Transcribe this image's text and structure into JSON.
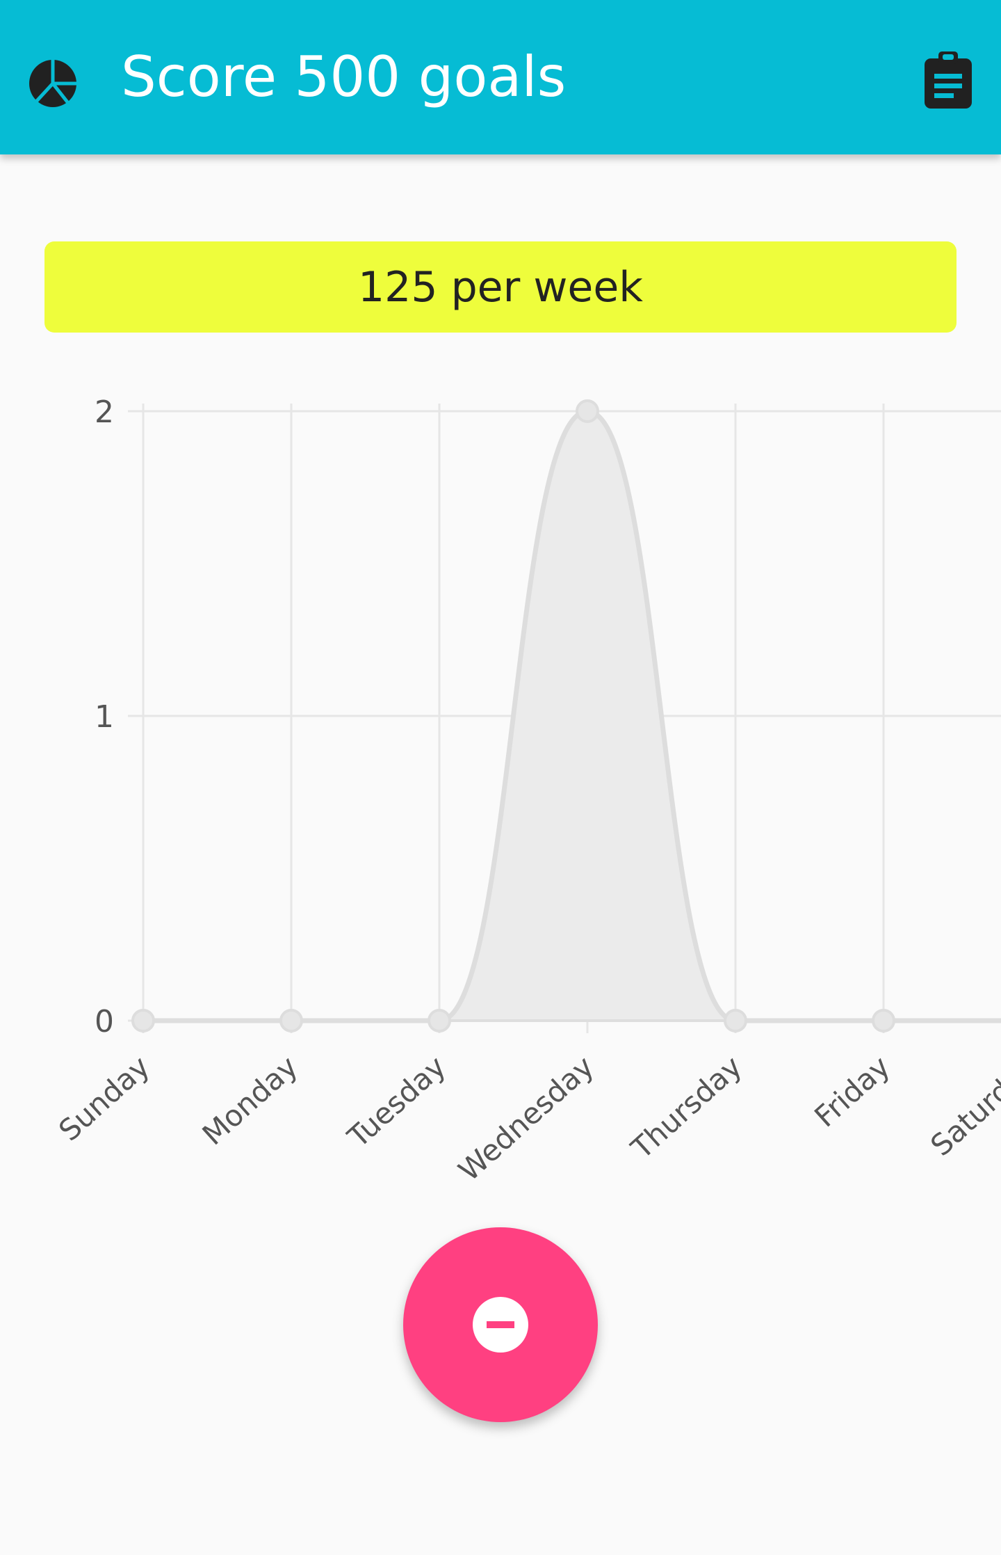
{
  "appbar": {
    "title": "Score 500 goals",
    "icon": "pie-chart-icon",
    "action_icon": "clipboard-icon",
    "color": "#06bcd4"
  },
  "rate_banner": {
    "text": "125 per week",
    "color": "#eefd3c"
  },
  "fab": {
    "icon": "minus-circle-icon",
    "color": "#ff4081"
  },
  "chart_data": {
    "type": "area",
    "categories": [
      "Sunday",
      "Monday",
      "Tuesday",
      "Wednesday",
      "Thursday",
      "Friday",
      "Saturday"
    ],
    "series": [
      {
        "values": [
          0,
          0,
          0,
          2,
          0,
          0,
          0
        ]
      }
    ],
    "y_ticks": [
      "0",
      "1",
      "2"
    ],
    "ylim": [
      0,
      2
    ],
    "grid": true,
    "legend": "none",
    "fill_color": "#ebebeb",
    "line_color": "#dddddd"
  }
}
